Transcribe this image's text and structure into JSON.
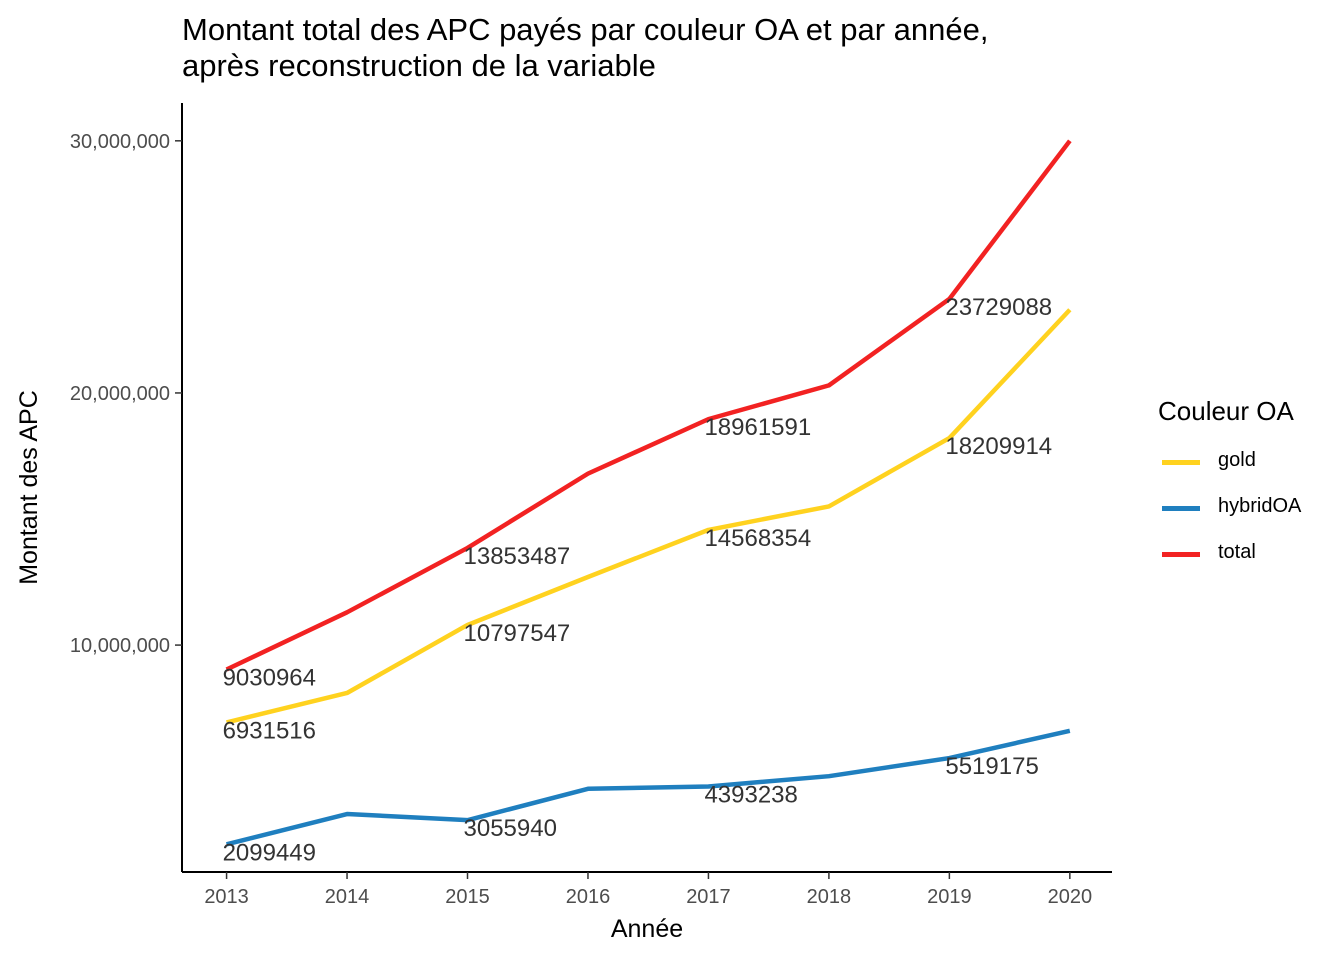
{
  "chart_data": {
    "type": "line",
    "title_line1": "Montant total des APC payés par couleur OA et par année,",
    "title_line2": "après reconstruction de la variable",
    "xlabel": "Année",
    "ylabel": "Montant des APC",
    "x": [
      2013,
      2014,
      2015,
      2016,
      2017,
      2018,
      2019,
      2020
    ],
    "xlim": [
      2012.63,
      2020.35
    ],
    "ylim": [
      1000000,
      31500000
    ],
    "yticks": [
      10000000,
      20000000,
      30000000
    ],
    "ytick_labels": [
      "10,000,000",
      "20,000,000",
      "30,000,000"
    ],
    "legend": {
      "title": "Couleur OA",
      "position": "right"
    },
    "series": [
      {
        "name": "gold",
        "color": "#FFD21F",
        "values": [
          6931516,
          8100000,
          10797547,
          12700000,
          14568354,
          15500000,
          18209914,
          23300000
        ],
        "labels": [
          "6931516",
          "",
          "10797547",
          "",
          "14568354",
          "",
          "18209914",
          ""
        ]
      },
      {
        "name": "hybridOA",
        "color": "#1F7FBF",
        "values": [
          2099449,
          3300000,
          3055940,
          4300000,
          4393238,
          4800000,
          5519175,
          6600000
        ],
        "labels": [
          "2099449",
          "",
          "3055940",
          "",
          "4393238",
          "",
          "5519175",
          ""
        ]
      },
      {
        "name": "total",
        "color": "#F22222",
        "values": [
          9030964,
          11300000,
          13853487,
          16800000,
          18961591,
          20300000,
          23729088,
          30000000
        ],
        "labels": [
          "9030964",
          "",
          "13853487",
          "",
          "18961591",
          "",
          "23729088",
          ""
        ]
      }
    ]
  }
}
